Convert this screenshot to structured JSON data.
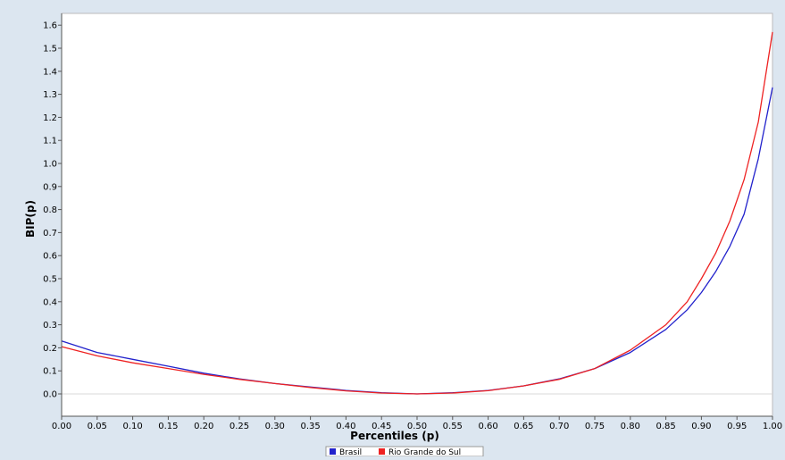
{
  "chart_data": {
    "type": "line",
    "title": "",
    "xlabel": "Percentiles (p)",
    "ylabel": "BIP(p)",
    "xlim": [
      0,
      1
    ],
    "ylim": [
      -0.1,
      1.6
    ],
    "x_ticks": [
      "0.00",
      "0.05",
      "0.10",
      "0.15",
      "0.20",
      "0.25",
      "0.30",
      "0.35",
      "0.40",
      "0.45",
      "0.50",
      "0.55",
      "0.60",
      "0.65",
      "0.70",
      "0.75",
      "0.80",
      "0.85",
      "0.90",
      "0.95",
      "1.00"
    ],
    "y_ticks": [
      "0.0",
      "0.1",
      "0.2",
      "0.3",
      "0.4",
      "0.5",
      "0.6",
      "0.7",
      "0.8",
      "0.9",
      "1.0",
      "1.1",
      "1.2",
      "1.3",
      "1.4",
      "1.5",
      "1.6"
    ],
    "grid": false,
    "legend_position": "bottom-center",
    "series": [
      {
        "name": "Brasil",
        "color": "#2222cc",
        "x": [
          0.0,
          0.05,
          0.1,
          0.15,
          0.2,
          0.25,
          0.3,
          0.35,
          0.4,
          0.45,
          0.5,
          0.55,
          0.6,
          0.65,
          0.7,
          0.75,
          0.8,
          0.85,
          0.88,
          0.9,
          0.92,
          0.94,
          0.96,
          0.98,
          1.0
        ],
        "y": [
          0.23,
          0.18,
          0.15,
          0.12,
          0.09,
          0.065,
          0.045,
          0.03,
          0.015,
          0.005,
          0.0,
          0.005,
          0.015,
          0.035,
          0.065,
          0.11,
          0.18,
          0.28,
          0.365,
          0.44,
          0.53,
          0.64,
          0.78,
          1.02,
          1.33
        ]
      },
      {
        "name": "Rio Grande do Sul",
        "color": "#ee2222",
        "x": [
          0.0,
          0.05,
          0.1,
          0.15,
          0.2,
          0.25,
          0.3,
          0.35,
          0.4,
          0.45,
          0.5,
          0.55,
          0.6,
          0.65,
          0.7,
          0.75,
          0.8,
          0.85,
          0.88,
          0.9,
          0.92,
          0.94,
          0.96,
          0.98,
          1.0
        ],
        "y": [
          0.205,
          0.165,
          0.135,
          0.11,
          0.085,
          0.063,
          0.045,
          0.028,
          0.013,
          0.004,
          0.0,
          0.004,
          0.014,
          0.035,
          0.063,
          0.11,
          0.19,
          0.3,
          0.4,
          0.5,
          0.61,
          0.75,
          0.93,
          1.18,
          1.57
        ]
      }
    ]
  }
}
